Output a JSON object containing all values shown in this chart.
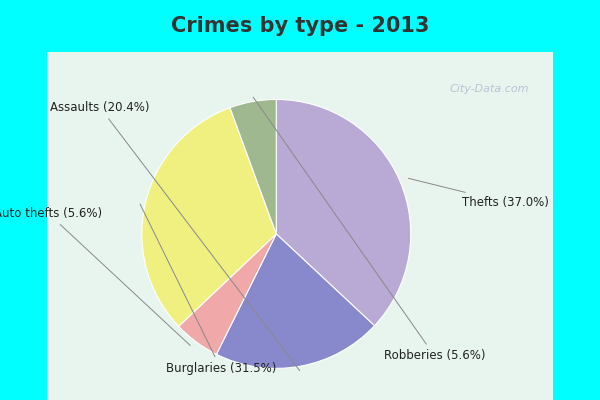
{
  "title": "Crimes by type - 2013",
  "slices": [
    {
      "label": "Thefts (37.0%)",
      "value": 37.0,
      "color": "#b8aad4"
    },
    {
      "label": "Assaults (20.4%)",
      "value": 20.4,
      "color": "#8888cc"
    },
    {
      "label": "Auto thefts (5.6%)",
      "value": 5.6,
      "color": "#f0a8a8"
    },
    {
      "label": "Burglaries (31.5%)",
      "value": 31.5,
      "color": "#f0f080"
    },
    {
      "label": "Robberies (5.6%)",
      "value": 5.6,
      "color": "#a0b890"
    }
  ],
  "title_bg_color": "#00FFFF",
  "chart_bg_color": "#e8f5ee",
  "title_color": "#333333",
  "title_fontsize": 15,
  "label_fontsize": 8.5,
  "watermark": "City-Data.com",
  "start_angle": 90,
  "fig_width": 6.0,
  "fig_height": 4.0
}
